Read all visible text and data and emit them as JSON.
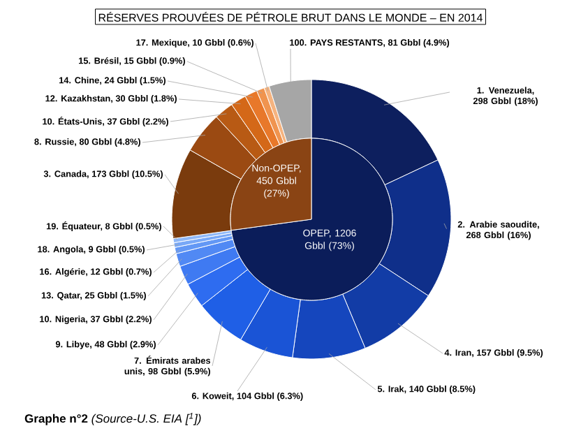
{
  "chart_data": [
    {
      "type": "donut",
      "title": "RÉSERVES PROUVÉES DE PÉTROLE BRUT DANS LE MONDE – EN 2014",
      "categories": [
        "1. Venezuela, 298 Gbbl (18%)",
        "2. Arabie saoudite, 268 Gbbl (16%)",
        "4. Iran, 157 Gbbl (9.5%)",
        "5. Irak, 140 Gbbl (8.5%)",
        "6. Koweit, 104 Gbbl (6.3%)",
        "7. Émirats arabes unis, 98 Gbbl (5.9%)",
        "9. Libye, 48 Gbbl (2.9%)",
        "10. Nigeria, 37 Gbbl (2.2%)",
        "13. Qatar, 25 Gbbl (1.5%)",
        "16. Algérie, 12 Gbbl (0.7%)",
        "18. Angola, 9 Gbbl (0.5%)",
        "19. Équateur, 8 Gbbl (0.5%)",
        "3. Canada, 173 Gbbl (10.5%)",
        "8. Russie, 80 Gbbl (4.8%)",
        "10. États-Unis, 37 Gbbl (2.2%)",
        "12. Kazakhstan, 30 Gbbl (1.8%)",
        "14. Chine, 24 Gbbl (1.5%)",
        "15. Brésil, 15 Gbbl (0.9%)",
        "17. Mexique, 10 Gbbl (0.6%)",
        "100. PAYS RESTANTS, 81 Gbbl (4.9%)"
      ],
      "values": [
        298,
        268,
        157,
        140,
        104,
        98,
        48,
        37,
        25,
        12,
        9,
        8,
        173,
        80,
        37,
        30,
        24,
        15,
        10,
        81
      ],
      "colors": [
        "#0d1f5e",
        "#0f2f8a",
        "#123ca6",
        "#1546bd",
        "#1a54d6",
        "#1f5fe6",
        "#2e6cf0",
        "#3f7af2",
        "#5189f4",
        "#6398f5",
        "#78a8f7",
        "#8fb8f8",
        "#7a3b0d",
        "#9b4a12",
        "#b85a14",
        "#d46818",
        "#e8782a",
        "#f0944f",
        "#f5b37f",
        "#a6a6a6"
      ],
      "annotations": [
        "**Graphe n°2** *(Source-U.S. EIA [$^{1}$])*"
      ]
    },
    {
      "type": "pie",
      "categories": [
        "OPEP, 1206 Gbbl (73%)",
        "Non-OPEP, 450 Gbbl (27%)"
      ],
      "values": [
        1206,
        450
      ],
      "colors": [
        "#0b1d5a",
        "#8a4414"
      ]
    }
  ]
}
